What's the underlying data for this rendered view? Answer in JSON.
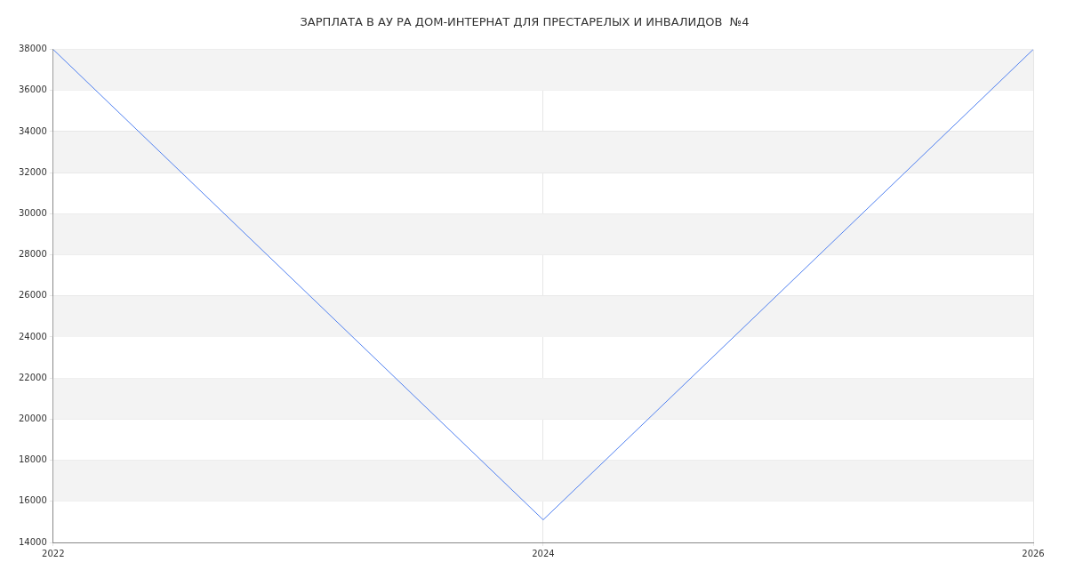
{
  "chart_data": {
    "type": "line",
    "title": "ЗАРПЛАТА В АУ РА ДОМ-ИНТЕРНАТ ДЛЯ ПРЕСТАРЕЛЫХ И ИНВАЛИДОВ  №4",
    "x": [
      "2022",
      "2024",
      "2026"
    ],
    "series": [
      {
        "color": "#4e7ff0",
        "values": [
          38000,
          15100,
          38000
        ]
      }
    ],
    "xlim": [
      "2022",
      "2026"
    ],
    "xticks": [
      "2022",
      "2024",
      "2026"
    ],
    "ylim": [
      14000,
      38000
    ],
    "yticks": [
      14000,
      16000,
      18000,
      20000,
      22000,
      24000,
      26000,
      28000,
      30000,
      32000,
      34000,
      36000,
      38000
    ],
    "grid": true,
    "legend": false,
    "marker": "none",
    "line_style": "solid"
  }
}
